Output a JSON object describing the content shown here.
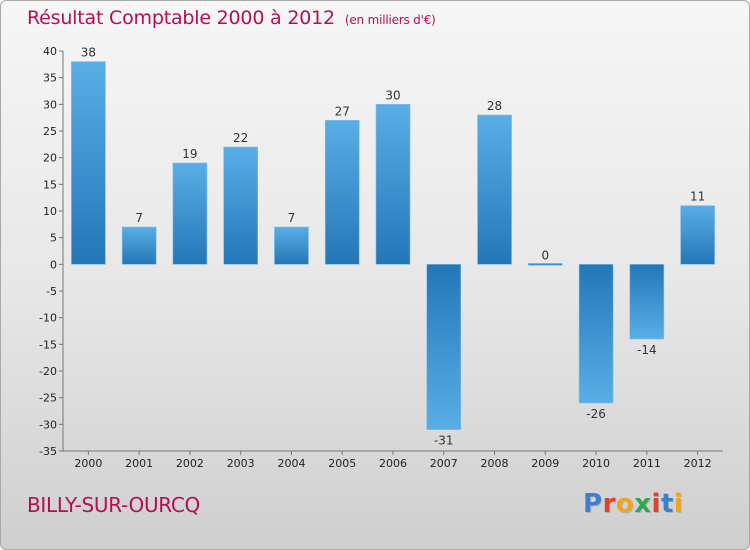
{
  "header": {
    "title": "Résultat Comptable 2000 à 2012",
    "subtitle": "(en milliers d'€)"
  },
  "footer": {
    "place": "BILLY-SUR-OURCQ",
    "logo": "Proxiti"
  },
  "colors": {
    "title": "#b40f55",
    "bar_light": "#5aaee6",
    "bar_dark": "#1f78b8"
  },
  "chart_data": {
    "type": "bar",
    "categories": [
      "2000",
      "2001",
      "2002",
      "2003",
      "2004",
      "2005",
      "2006",
      "2007",
      "2008",
      "2009",
      "2010",
      "2011",
      "2012"
    ],
    "values": [
      38,
      7,
      19,
      22,
      7,
      27,
      30,
      -31,
      28,
      0,
      -26,
      -14,
      11
    ],
    "data_labels": [
      "38",
      "7",
      "19",
      "22",
      "7",
      "27",
      "30",
      "-31",
      "28",
      "0",
      "-26",
      "-14",
      "11"
    ],
    "ylim": [
      -35,
      40
    ],
    "yticks": [
      40,
      35,
      30,
      25,
      20,
      15,
      10,
      5,
      0,
      -5,
      -10,
      -15,
      -20,
      -25,
      -30,
      -35
    ],
    "grid": false,
    "legend": "none"
  }
}
